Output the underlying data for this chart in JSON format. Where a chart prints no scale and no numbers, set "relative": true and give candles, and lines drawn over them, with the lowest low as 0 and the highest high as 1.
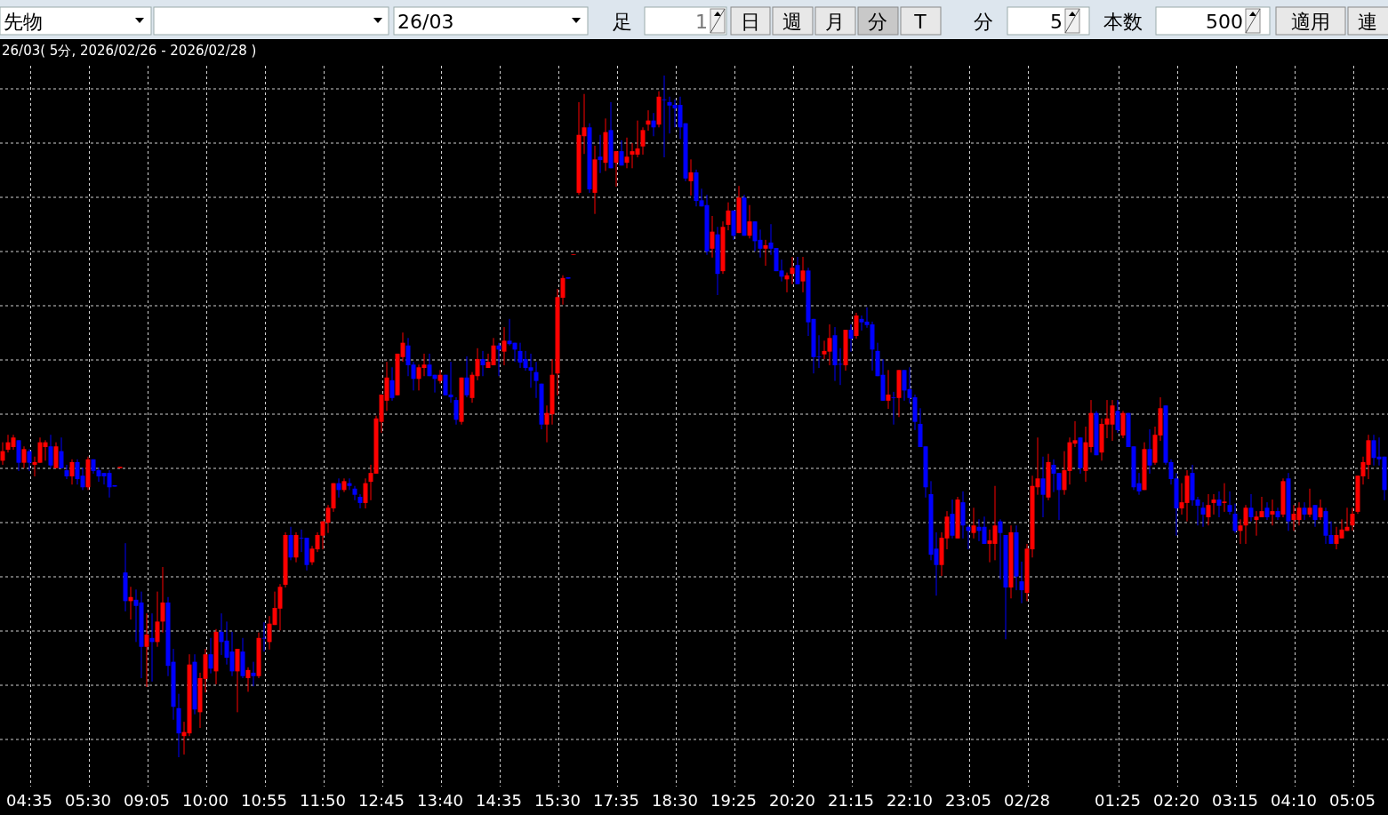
{
  "chart_data": {
    "type": "candlestick",
    "relative": true,
    "grid": true,
    "title": "26/03( 5分, 2026/02/26 - 2026/02/28 )",
    "annotations": [
      "先物",
      "26/03",
      "足",
      "1",
      "日",
      "週",
      "月",
      "分",
      "T",
      "分",
      "5",
      "本数",
      "500",
      "適用",
      "連"
    ],
    "colors": [
      "#ff0000",
      "#ff0000",
      "#ff0000",
      "#0000ff",
      "#ff0000",
      "#0000ff",
      "#ff0000",
      "#ff0000",
      "#ff0000",
      "#0000ff",
      "#ff0000",
      "#0000ff",
      "#0000ff",
      "#ff0000",
      "#0000ff",
      "#0000ff",
      "#ff0000",
      "#0000ff",
      "#0000ff",
      "#0000ff",
      "#0000ff",
      "#0000ff",
      "#ff0000",
      "#0000ff",
      "#ff0000",
      "#0000ff",
      "#0000ff",
      "#ff0000",
      "#0000ff",
      "#ff0000",
      "#ff0000",
      "#0000ff",
      "#0000ff",
      "#0000ff",
      "#ff0000",
      "#ff0000",
      "#0000ff",
      "#ff0000",
      "#ff0000",
      "#0000ff",
      "#ff0000",
      "#0000ff",
      "#0000ff",
      "#0000ff",
      "#ff0000",
      "#0000ff",
      "#ff0000",
      "#0000ff",
      "#ff0000",
      "#0000ff",
      "#ff0000",
      "#ff0000",
      "#ff0000",
      "#ff0000",
      "#0000ff",
      "#ff0000",
      "#0000ff",
      "#0000ff",
      "#ff0000",
      "#ff0000",
      "#ff0000",
      "#ff0000",
      "#ff0000",
      "#0000ff",
      "#ff0000",
      "#0000ff",
      "#0000ff",
      "#0000ff",
      "#ff0000",
      "#ff0000",
      "#ff0000",
      "#ff0000",
      "#ff0000",
      "#0000ff",
      "#ff0000",
      "#ff0000",
      "#0000ff",
      "#0000ff",
      "#ff0000",
      "#ff0000",
      "#0000ff",
      "#0000ff",
      "#ff0000",
      "#0000ff",
      "#0000ff",
      "#0000ff",
      "#ff0000",
      "#0000ff",
      "#ff0000",
      "#ff0000",
      "#0000ff",
      "#ff0000",
      "#ff0000",
      "#0000ff",
      "#ff0000",
      "#0000ff",
      "#0000ff",
      "#0000ff",
      "#0000ff",
      "#0000ff",
      "#0000ff",
      "#0000ff",
      "#ff0000",
      "#ff0000",
      "#ff0000",
      "#ff0000",
      "#0000ff",
      "#ff0000",
      "#ff0000",
      "#ff0000",
      "#0000ff",
      "#ff0000",
      "#0000ff",
      "#ff0000",
      "#0000ff",
      "#ff0000",
      "#0000ff",
      "#ff0000",
      "#ff0000",
      "#ff0000",
      "#ff0000",
      "#ff0000",
      "#0000ff",
      "#ff0000",
      "#0000ff",
      "#0000ff",
      "#0000ff",
      "#0000ff",
      "#0000ff",
      "#ff0000",
      "#0000ff",
      "#0000ff",
      "#0000ff",
      "#ff0000",
      "#0000ff",
      "#ff0000",
      "#ff0000",
      "#0000ff",
      "#ff0000",
      "#0000ff",
      "#ff0000",
      "#0000ff",
      "#0000ff",
      "#ff0000",
      "#0000ff",
      "#0000ff",
      "#0000ff",
      "#ff0000",
      "#ff0000",
      "#0000ff",
      "#ff0000",
      "#0000ff",
      "#0000ff",
      "#0000ff",
      "#ff0000",
      "#ff0000",
      "#0000ff",
      "#0000ff",
      "#ff0000",
      "#0000ff",
      "#ff0000",
      "#0000ff",
      "#0000ff",
      "#0000ff",
      "#0000ff",
      "#0000ff",
      "#ff0000",
      "#0000ff",
      "#ff0000",
      "#0000ff",
      "#0000ff",
      "#0000ff",
      "#0000ff",
      "#0000ff",
      "#0000ff",
      "#0000ff",
      "#ff0000",
      "#ff0000",
      "#0000ff",
      "#ff0000",
      "#0000ff",
      "#0000ff",
      "#ff0000",
      "#0000ff",
      "#0000ff",
      "#ff0000",
      "#ff0000",
      "#0000ff",
      "#0000ff",
      "#ff0000",
      "#0000ff",
      "#0000ff",
      "#ff0000",
      "#ff0000",
      "#ff0000",
      "#0000ff",
      "#ff0000",
      "#0000ff",
      "#0000ff",
      "#ff0000",
      "#ff0000",
      "#ff0000",
      "#0000ff",
      "#ff0000",
      "#ff0000",
      "#0000ff",
      "#ff0000",
      "#ff0000",
      "#ff0000",
      "#0000ff",
      "#ff0000",
      "#0000ff",
      "#0000ff",
      "#0000ff",
      "#ff0000",
      "#0000ff",
      "#ff0000",
      "#ff0000",
      "#0000ff",
      "#0000ff",
      "#0000ff",
      "#ff0000",
      "#ff0000",
      "#0000ff",
      "#0000ff",
      "#0000ff",
      "#ff0000",
      "#ff0000",
      "#0000ff",
      "#ff0000",
      "#0000ff",
      "#0000ff",
      "#ff0000",
      "#ff0000",
      "#0000ff",
      "#ff0000",
      "#ff0000",
      "#0000ff",
      "#ff0000",
      "#0000ff",
      "#ff0000",
      "#0000ff",
      "#ff0000",
      "#ff0000",
      "#0000ff",
      "#ff0000",
      "#0000ff",
      "#ff0000",
      "#0000ff",
      "#0000ff",
      "#ff0000",
      "#ff0000",
      "#ff0000",
      "#ff0000",
      "#ff0000",
      "#ff0000",
      "#ff0000",
      "#0000ff",
      "#0000ff",
      "#0000ff"
    ],
    "categories": [
      null,
      null,
      null,
      null,
      null,
      "04:35",
      null,
      null,
      null,
      null,
      null,
      null,
      null,
      null,
      null,
      null,
      "05:30",
      null,
      null,
      null,
      null,
      null,
      null,
      null,
      null,
      null,
      null,
      "09:05",
      null,
      null,
      null,
      null,
      null,
      null,
      null,
      null,
      null,
      null,
      "10:00",
      null,
      null,
      null,
      null,
      null,
      null,
      null,
      null,
      null,
      null,
      "10:55",
      null,
      null,
      null,
      null,
      null,
      null,
      null,
      null,
      null,
      null,
      "11:50",
      null,
      null,
      null,
      null,
      null,
      null,
      null,
      null,
      null,
      null,
      "12:45",
      null,
      null,
      null,
      null,
      null,
      null,
      null,
      null,
      null,
      null,
      "13:40",
      null,
      null,
      null,
      null,
      null,
      null,
      null,
      null,
      null,
      null,
      "14:35",
      null,
      null,
      null,
      null,
      null,
      null,
      null,
      null,
      null,
      null,
      "15:30",
      null,
      null,
      null,
      null,
      null,
      null,
      null,
      null,
      null,
      null,
      "17:35",
      null,
      null,
      null,
      null,
      null,
      null,
      null,
      null,
      null,
      null,
      "18:30",
      null,
      null,
      null,
      null,
      null,
      null,
      null,
      null,
      null,
      null,
      "19:25",
      null,
      null,
      null,
      null,
      null,
      null,
      null,
      null,
      null,
      null,
      "20:20",
      null,
      null,
      null,
      null,
      null,
      null,
      null,
      null,
      null,
      null,
      "21:15",
      null,
      null,
      null,
      null,
      null,
      null,
      null,
      null,
      null,
      null,
      "22:10",
      null,
      null,
      null,
      null,
      null,
      null,
      null,
      null,
      null,
      null,
      "23:05",
      null,
      null,
      null,
      null,
      null,
      null,
      null,
      null,
      null,
      null,
      "02/28",
      null,
      null,
      null,
      null,
      null,
      null,
      null,
      null,
      null,
      null,
      null,
      null,
      null,
      null,
      null,
      null,
      "01:25",
      null,
      null,
      null,
      null,
      null,
      null,
      null,
      null,
      null,
      null,
      "02:20",
      null,
      null,
      null,
      null,
      null,
      null,
      null,
      null,
      null,
      null,
      "03:15",
      null,
      null,
      null,
      null,
      null,
      null,
      null,
      null,
      null,
      null,
      "04:10",
      null,
      null,
      null,
      null,
      null,
      null,
      null,
      null,
      null,
      null,
      "05:05",
      null,
      null,
      null,
      null,
      null,
      null
    ],
    "ohlc": [
      [
        0.435,
        0.462,
        0.429,
        0.449
      ],
      [
        0.451,
        0.473,
        0.447,
        0.462
      ],
      [
        0.455,
        0.473,
        0.451,
        0.469
      ],
      [
        0.465,
        0.465,
        0.42,
        0.432
      ],
      [
        0.432,
        0.456,
        0.424,
        0.452
      ],
      [
        0.449,
        0.452,
        0.42,
        0.432
      ],
      [
        0.429,
        0.441,
        0.412,
        0.433
      ],
      [
        0.432,
        0.469,
        0.432,
        0.462
      ],
      [
        0.455,
        0.465,
        0.435,
        0.462
      ],
      [
        0.456,
        0.473,
        0.424,
        0.428
      ],
      [
        0.424,
        0.462,
        0.424,
        0.456
      ],
      [
        0.449,
        0.469,
        0.424,
        0.424
      ],
      [
        0.421,
        0.429,
        0.408,
        0.412
      ],
      [
        0.412,
        0.437,
        0.4,
        0.433
      ],
      [
        0.433,
        0.437,
        0.4,
        0.408
      ],
      [
        0.413,
        0.425,
        0.392,
        0.396
      ],
      [
        0.396,
        0.441,
        0.392,
        0.437
      ],
      [
        0.437,
        0.437,
        0.416,
        0.42
      ],
      [
        0.421,
        0.425,
        0.404,
        0.412
      ],
      [
        0.417,
        0.417,
        0.4,
        0.412
      ],
      [
        0.417,
        0.421,
        0.381,
        0.396
      ],
      [
        0.399,
        0.399,
        0.397,
        0.397
      ],
      [
        0.424,
        0.426,
        0.424,
        0.426
      ],
      [
        0.271,
        0.314,
        0.214,
        0.229
      ],
      [
        0.229,
        0.25,
        0.202,
        0.235
      ],
      [
        0.231,
        0.246,
        0.169,
        0.222
      ],
      [
        0.227,
        0.243,
        0.116,
        0.162
      ],
      [
        0.162,
        0.211,
        0.103,
        0.18
      ],
      [
        0.175,
        0.211,
        0.111,
        0.169
      ],
      [
        0.169,
        0.243,
        0.162,
        0.199
      ],
      [
        0.199,
        0.279,
        0.183,
        0.227
      ],
      [
        0.227,
        0.235,
        0.119,
        0.134
      ],
      [
        0.14,
        0.159,
        0.055,
        0.074
      ],
      [
        0.072,
        0.093,
        0.0,
        0.035
      ],
      [
        0.031,
        0.052,
        0.004,
        0.037
      ],
      [
        0.035,
        0.151,
        0.031,
        0.136
      ],
      [
        0.14,
        0.151,
        0.063,
        0.07
      ],
      [
        0.066,
        0.124,
        0.043,
        0.116
      ],
      [
        0.115,
        0.159,
        0.095,
        0.151
      ],
      [
        0.151,
        0.175,
        0.123,
        0.13
      ],
      [
        0.126,
        0.188,
        0.107,
        0.184
      ],
      [
        0.184,
        0.211,
        0.15,
        0.169
      ],
      [
        0.171,
        0.199,
        0.136,
        0.146
      ],
      [
        0.155,
        0.184,
        0.119,
        0.126
      ],
      [
        0.126,
        0.159,
        0.066,
        0.159
      ],
      [
        0.155,
        0.175,
        0.116,
        0.119
      ],
      [
        0.116,
        0.132,
        0.096,
        0.128
      ],
      [
        0.124,
        0.14,
        0.104,
        0.119
      ],
      [
        0.119,
        0.183,
        0.116,
        0.175
      ],
      [
        0.175,
        0.198,
        0.155,
        0.174
      ],
      [
        0.169,
        0.207,
        0.158,
        0.196
      ],
      [
        0.194,
        0.243,
        0.194,
        0.219
      ],
      [
        0.218,
        0.254,
        0.186,
        0.25
      ],
      [
        0.253,
        0.33,
        0.249,
        0.326
      ],
      [
        0.326,
        0.338,
        0.289,
        0.293
      ],
      [
        0.293,
        0.33,
        0.286,
        0.326
      ],
      [
        0.322,
        0.334,
        0.301,
        0.321
      ],
      [
        0.322,
        0.322,
        0.274,
        0.282
      ],
      [
        0.286,
        0.31,
        0.282,
        0.306
      ],
      [
        0.305,
        0.33,
        0.301,
        0.326
      ],
      [
        0.325,
        0.346,
        0.305,
        0.346
      ],
      [
        0.344,
        0.37,
        0.329,
        0.366
      ],
      [
        0.365,
        0.402,
        0.36,
        0.402
      ],
      [
        0.402,
        0.409,
        0.381,
        0.392
      ],
      [
        0.392,
        0.409,
        0.389,
        0.405
      ],
      [
        0.402,
        0.409,
        0.392,
        0.398
      ],
      [
        0.394,
        0.398,
        0.377,
        0.385
      ],
      [
        0.382,
        0.386,
        0.365,
        0.373
      ],
      [
        0.373,
        0.409,
        0.365,
        0.402
      ],
      [
        0.404,
        0.429,
        0.377,
        0.417
      ],
      [
        0.416,
        0.501,
        0.416,
        0.497
      ],
      [
        0.492,
        0.532,
        0.476,
        0.532
      ],
      [
        0.523,
        0.58,
        0.508,
        0.557
      ],
      [
        0.553,
        0.572,
        0.523,
        0.527
      ],
      [
        0.531,
        0.592,
        0.531,
        0.592
      ],
      [
        0.587,
        0.623,
        0.58,
        0.608
      ],
      [
        0.604,
        0.615,
        0.559,
        0.575
      ],
      [
        0.576,
        0.58,
        0.538,
        0.555
      ],
      [
        0.555,
        0.576,
        0.538,
        0.572
      ],
      [
        0.571,
        0.592,
        0.559,
        0.576
      ],
      [
        0.576,
        0.592,
        0.559,
        0.559
      ],
      [
        0.561,
        0.561,
        0.535,
        0.555
      ],
      [
        0.552,
        0.568,
        0.548,
        0.561
      ],
      [
        0.561,
        0.561,
        0.531,
        0.531
      ],
      [
        0.532,
        0.58,
        0.52,
        0.528
      ],
      [
        0.524,
        0.528,
        0.488,
        0.495
      ],
      [
        0.492,
        0.557,
        0.488,
        0.557
      ],
      [
        0.557,
        0.588,
        0.528,
        0.531
      ],
      [
        0.527,
        0.565,
        0.52,
        0.561
      ],
      [
        0.559,
        0.6,
        0.553,
        0.584
      ],
      [
        0.584,
        0.596,
        0.559,
        0.575
      ],
      [
        0.571,
        0.592,
        0.571,
        0.58
      ],
      [
        0.575,
        0.615,
        0.575,
        0.604
      ],
      [
        0.604,
        0.608,
        0.559,
        0.598
      ],
      [
        0.595,
        0.631,
        0.575,
        0.611
      ],
      [
        0.611,
        0.643,
        0.604,
        0.606
      ],
      [
        0.608,
        0.608,
        0.58,
        0.598
      ],
      [
        0.596,
        0.608,
        0.571,
        0.579
      ],
      [
        0.584,
        0.596,
        0.567,
        0.571
      ],
      [
        0.572,
        0.592,
        0.542,
        0.567
      ],
      [
        0.565,
        0.58,
        0.527,
        0.552
      ],
      [
        0.548,
        0.548,
        0.481,
        0.488
      ],
      [
        0.488,
        0.516,
        0.462,
        0.505
      ],
      [
        0.503,
        0.584,
        0.488,
        0.561
      ],
      [
        0.563,
        0.687,
        0.531,
        0.675
      ],
      [
        0.674,
        0.707,
        0.664,
        0.703
      ],
      [
        0.704,
        0.704,
        0.702,
        0.702
      ],
      [
        0.737,
        0.738,
        0.737,
        0.738
      ],
      [
        0.828,
        0.961,
        0.825,
        0.913
      ],
      [
        0.911,
        0.973,
        0.885,
        0.924
      ],
      [
        0.924,
        0.93,
        0.828,
        0.833
      ],
      [
        0.828,
        0.897,
        0.797,
        0.877
      ],
      [
        0.881,
        0.913,
        0.857,
        0.876
      ],
      [
        0.872,
        0.937,
        0.86,
        0.917
      ],
      [
        0.92,
        0.961,
        0.864,
        0.864
      ],
      [
        0.872,
        0.889,
        0.837,
        0.889
      ],
      [
        0.889,
        0.905,
        0.868,
        0.868
      ],
      [
        0.872,
        0.909,
        0.864,
        0.881
      ],
      [
        0.884,
        0.901,
        0.864,
        0.889
      ],
      [
        0.884,
        0.934,
        0.88,
        0.893
      ],
      [
        0.896,
        0.924,
        0.884,
        0.92
      ],
      [
        0.928,
        0.949,
        0.919,
        0.934
      ],
      [
        0.934,
        0.945,
        0.911,
        0.924
      ],
      [
        0.928,
        0.977,
        0.924,
        0.969
      ],
      [
        0.965,
        1.0,
        0.88,
        0.964
      ],
      [
        0.961,
        0.969,
        0.915,
        0.956
      ],
      [
        0.957,
        0.965,
        0.924,
        0.952
      ],
      [
        0.957,
        0.969,
        0.907,
        0.924
      ],
      [
        0.93,
        0.93,
        0.845,
        0.849
      ],
      [
        0.845,
        0.877,
        0.824,
        0.858
      ],
      [
        0.858,
        0.862,
        0.808,
        0.816
      ],
      [
        0.817,
        0.834,
        0.808,
        0.808
      ],
      [
        0.81,
        0.825,
        0.737,
        0.742
      ],
      [
        0.746,
        0.794,
        0.733,
        0.771
      ],
      [
        0.767,
        0.778,
        0.678,
        0.709
      ],
      [
        0.713,
        0.786,
        0.709,
        0.778
      ],
      [
        0.781,
        0.814,
        0.773,
        0.802
      ],
      [
        0.802,
        0.802,
        0.759,
        0.765
      ],
      [
        0.769,
        0.838,
        0.769,
        0.821
      ],
      [
        0.821,
        0.825,
        0.765,
        0.765
      ],
      [
        0.765,
        0.81,
        0.761,
        0.786
      ],
      [
        0.786,
        0.786,
        0.742,
        0.757
      ],
      [
        0.759,
        0.774,
        0.733,
        0.746
      ],
      [
        0.746,
        0.759,
        0.721,
        0.751
      ],
      [
        0.755,
        0.782,
        0.737,
        0.746
      ],
      [
        0.747,
        0.747,
        0.713,
        0.713
      ],
      [
        0.714,
        0.73,
        0.698,
        0.705
      ],
      [
        0.701,
        0.711,
        0.682,
        0.707
      ],
      [
        0.709,
        0.734,
        0.694,
        0.718
      ],
      [
        0.722,
        0.734,
        0.694,
        0.694
      ],
      [
        0.698,
        0.734,
        0.682,
        0.714
      ],
      [
        0.714,
        0.718,
        0.618,
        0.638
      ],
      [
        0.643,
        0.643,
        0.563,
        0.587
      ],
      [
        0.588,
        0.619,
        0.571,
        0.587
      ],
      [
        0.591,
        0.611,
        0.584,
        0.596
      ],
      [
        0.595,
        0.635,
        0.575,
        0.615
      ],
      [
        0.619,
        0.631,
        0.552,
        0.575
      ],
      [
        0.577,
        0.6,
        0.546,
        0.576
      ],
      [
        0.575,
        0.627,
        0.567,
        0.627
      ],
      [
        0.627,
        0.635,
        0.595,
        0.614
      ],
      [
        0.618,
        0.652,
        0.614,
        0.648
      ],
      [
        0.643,
        0.648,
        0.626,
        0.638
      ],
      [
        0.639,
        0.66,
        0.63,
        0.634
      ],
      [
        0.635,
        0.639,
        0.567,
        0.598
      ],
      [
        0.596,
        0.608,
        0.559,
        0.559
      ],
      [
        0.561,
        0.584,
        0.523,
        0.523
      ],
      [
        0.523,
        0.568,
        0.511,
        0.532
      ],
      [
        0.528,
        0.536,
        0.488,
        0.527
      ],
      [
        0.527,
        0.568,
        0.499,
        0.568
      ],
      [
        0.568,
        0.568,
        0.523,
        0.538
      ],
      [
        0.54,
        0.572,
        0.519,
        0.527
      ],
      [
        0.528,
        0.532,
        0.48,
        0.492
      ],
      [
        0.489,
        0.512,
        0.455,
        0.455
      ],
      [
        0.456,
        0.456,
        0.381,
        0.396
      ],
      [
        0.386,
        0.405,
        0.289,
        0.297
      ],
      [
        0.306,
        0.33,
        0.237,
        0.282
      ],
      [
        0.282,
        0.33,
        0.266,
        0.322
      ],
      [
        0.321,
        0.361,
        0.305,
        0.353
      ],
      [
        0.357,
        0.378,
        0.321,
        0.325
      ],
      [
        0.321,
        0.382,
        0.321,
        0.378
      ],
      [
        0.374,
        0.39,
        0.321,
        0.34
      ],
      [
        0.338,
        0.34,
        0.305,
        0.332
      ],
      [
        0.329,
        0.366,
        0.321,
        0.34
      ],
      [
        0.338,
        0.349,
        0.317,
        0.332
      ],
      [
        0.338,
        0.353,
        0.313,
        0.313
      ],
      [
        0.313,
        0.334,
        0.286,
        0.318
      ],
      [
        0.313,
        0.398,
        0.289,
        0.34
      ],
      [
        0.346,
        0.349,
        0.261,
        0.329
      ],
      [
        0.326,
        0.326,
        0.173,
        0.249
      ],
      [
        0.249,
        0.34,
        0.233,
        0.33
      ],
      [
        0.33,
        0.34,
        0.245,
        0.265
      ],
      [
        0.258,
        0.287,
        0.226,
        0.245
      ],
      [
        0.241,
        0.313,
        0.229,
        0.306
      ],
      [
        0.305,
        0.413,
        0.293,
        0.398
      ],
      [
        0.396,
        0.469,
        0.385,
        0.409
      ],
      [
        0.409,
        0.441,
        0.352,
        0.385
      ],
      [
        0.381,
        0.445,
        0.377,
        0.433
      ],
      [
        0.429,
        0.437,
        0.389,
        0.416
      ],
      [
        0.417,
        0.417,
        0.348,
        0.392
      ],
      [
        0.392,
        0.449,
        0.385,
        0.421
      ],
      [
        0.42,
        0.469,
        0.4,
        0.462
      ],
      [
        0.46,
        0.493,
        0.455,
        0.465
      ],
      [
        0.469,
        0.469,
        0.416,
        0.424
      ],
      [
        0.42,
        0.485,
        0.404,
        0.462
      ],
      [
        0.455,
        0.524,
        0.447,
        0.505
      ],
      [
        0.505,
        0.508,
        0.443,
        0.443
      ],
      [
        0.447,
        0.497,
        0.435,
        0.489
      ],
      [
        0.488,
        0.524,
        0.468,
        0.497
      ],
      [
        0.488,
        0.524,
        0.464,
        0.516
      ],
      [
        0.508,
        0.524,
        0.476,
        0.48
      ],
      [
        0.472,
        0.508,
        0.468,
        0.505
      ],
      [
        0.505,
        0.505,
        0.455,
        0.455
      ],
      [
        0.456,
        0.456,
        0.392,
        0.396
      ],
      [
        0.402,
        0.417,
        0.385,
        0.39
      ],
      [
        0.392,
        0.462,
        0.392,
        0.452
      ],
      [
        0.452,
        0.481,
        0.416,
        0.428
      ],
      [
        0.432,
        0.485,
        0.429,
        0.473
      ],
      [
        0.472,
        0.528,
        0.464,
        0.512
      ],
      [
        0.516,
        0.516,
        0.429,
        0.432
      ],
      [
        0.433,
        0.437,
        0.4,
        0.408
      ],
      [
        0.409,
        0.417,
        0.325,
        0.365
      ],
      [
        0.365,
        0.402,
        0.356,
        0.374
      ],
      [
        0.373,
        0.421,
        0.346,
        0.413
      ],
      [
        0.417,
        0.429,
        0.369,
        0.377
      ],
      [
        0.378,
        0.382,
        0.34,
        0.369
      ],
      [
        0.366,
        0.374,
        0.338,
        0.356
      ],
      [
        0.352,
        0.386,
        0.34,
        0.37
      ],
      [
        0.373,
        0.386,
        0.356,
        0.378
      ],
      [
        0.378,
        0.39,
        0.352,
        0.369
      ],
      [
        0.373,
        0.402,
        0.36,
        0.375
      ],
      [
        0.37,
        0.39,
        0.356,
        0.36
      ],
      [
        0.357,
        0.372,
        0.329,
        0.332
      ],
      [
        0.332,
        0.349,
        0.313,
        0.34
      ],
      [
        0.34,
        0.37,
        0.313,
        0.366
      ],
      [
        0.366,
        0.386,
        0.346,
        0.352
      ],
      [
        0.348,
        0.361,
        0.325,
        0.353
      ],
      [
        0.352,
        0.382,
        0.352,
        0.361
      ],
      [
        0.366,
        0.374,
        0.348,
        0.352
      ],
      [
        0.356,
        0.378,
        0.34,
        0.361
      ],
      [
        0.361,
        0.366,
        0.348,
        0.352
      ],
      [
        0.356,
        0.409,
        0.352,
        0.405
      ],
      [
        0.409,
        0.417,
        0.332,
        0.346
      ],
      [
        0.348,
        0.37,
        0.332,
        0.357
      ],
      [
        0.348,
        0.374,
        0.34,
        0.366
      ],
      [
        0.366,
        0.374,
        0.348,
        0.356
      ],
      [
        0.356,
        0.394,
        0.352,
        0.366
      ],
      [
        0.37,
        0.37,
        0.338,
        0.348
      ],
      [
        0.352,
        0.378,
        0.348,
        0.366
      ],
      [
        0.361,
        0.366,
        0.313,
        0.325
      ],
      [
        0.326,
        0.346,
        0.313,
        0.313
      ],
      [
        0.313,
        0.338,
        0.305,
        0.326
      ],
      [
        0.321,
        0.349,
        0.321,
        0.334
      ],
      [
        0.332,
        0.366,
        0.332,
        0.338
      ],
      [
        0.34,
        0.366,
        0.332,
        0.357
      ],
      [
        0.36,
        0.413,
        0.357,
        0.413
      ],
      [
        0.412,
        0.441,
        0.4,
        0.433
      ],
      [
        0.429,
        0.473,
        0.408,
        0.465
      ],
      [
        0.465,
        0.473,
        0.428,
        0.439
      ],
      [
        0.441,
        0.469,
        0.428,
        0.437
      ],
      [
        0.441,
        0.441,
        0.377,
        0.392
      ]
    ]
  }
}
